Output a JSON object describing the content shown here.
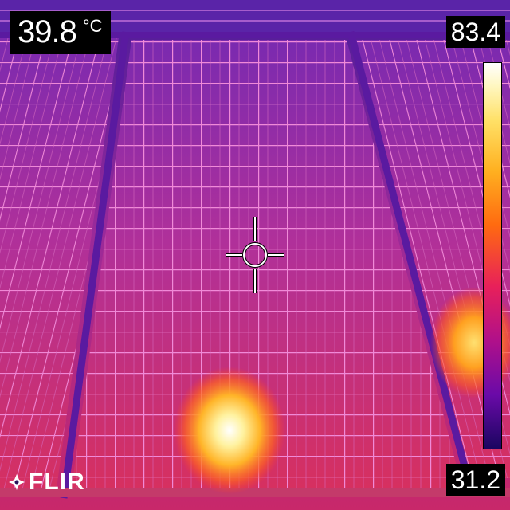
{
  "readout": {
    "spot_temperature": "39.8",
    "unit": "°C"
  },
  "scale": {
    "max": "83.4",
    "min": "31.2",
    "palette": "iron"
  },
  "brand": {
    "name": "FLIR",
    "icon": "flir-logo-icon"
  },
  "crosshair": {
    "icon": "spot-meter-crosshair-icon"
  },
  "colors": {
    "panel_base": "#b0257a",
    "panel_cold": "#6a2aa8",
    "frame": "#5a1aa0",
    "grid": "#e870c8",
    "hotspot": "#ffe066"
  }
}
